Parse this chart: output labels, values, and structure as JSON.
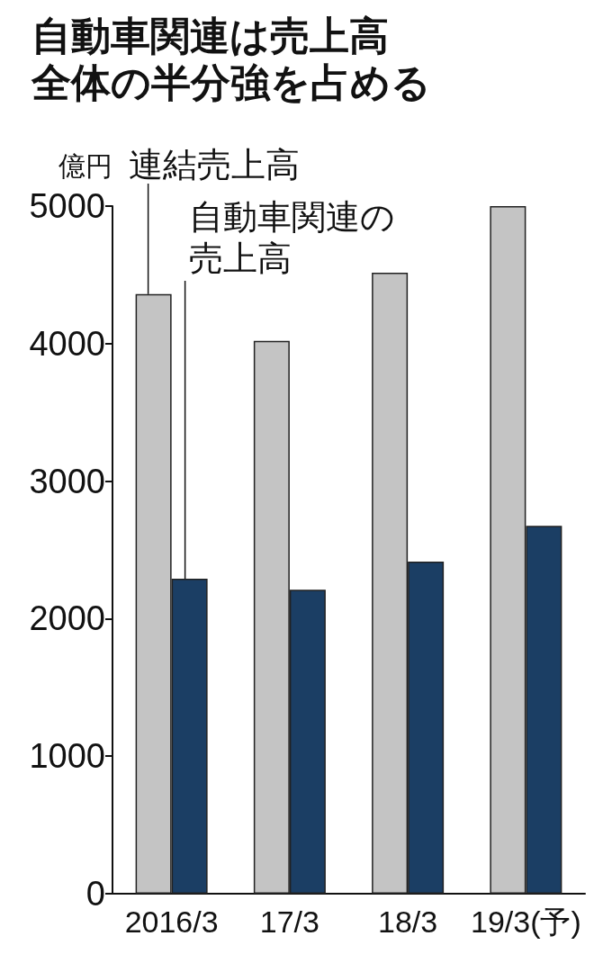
{
  "chart_data": {
    "type": "bar",
    "title": "自動車関連は売上高全体の半分強を占める",
    "ylabel": "億円",
    "categories": [
      "2016/3",
      "17/3",
      "18/3",
      "19/3(予)"
    ],
    "series": [
      {
        "name": "連結売上高",
        "color": "#c4c4c4",
        "values": [
          4360,
          4020,
          4515,
          5000
        ]
      },
      {
        "name": "自動車関連の売上高",
        "color": "#1b3e64",
        "values": [
          2290,
          2210,
          2415,
          2675
        ]
      }
    ],
    "ylim": [
      0,
      5000
    ],
    "yticks": [
      0,
      1000,
      2000,
      3000,
      4000,
      5000
    ],
    "grid": false,
    "legend": "top left"
  }
}
